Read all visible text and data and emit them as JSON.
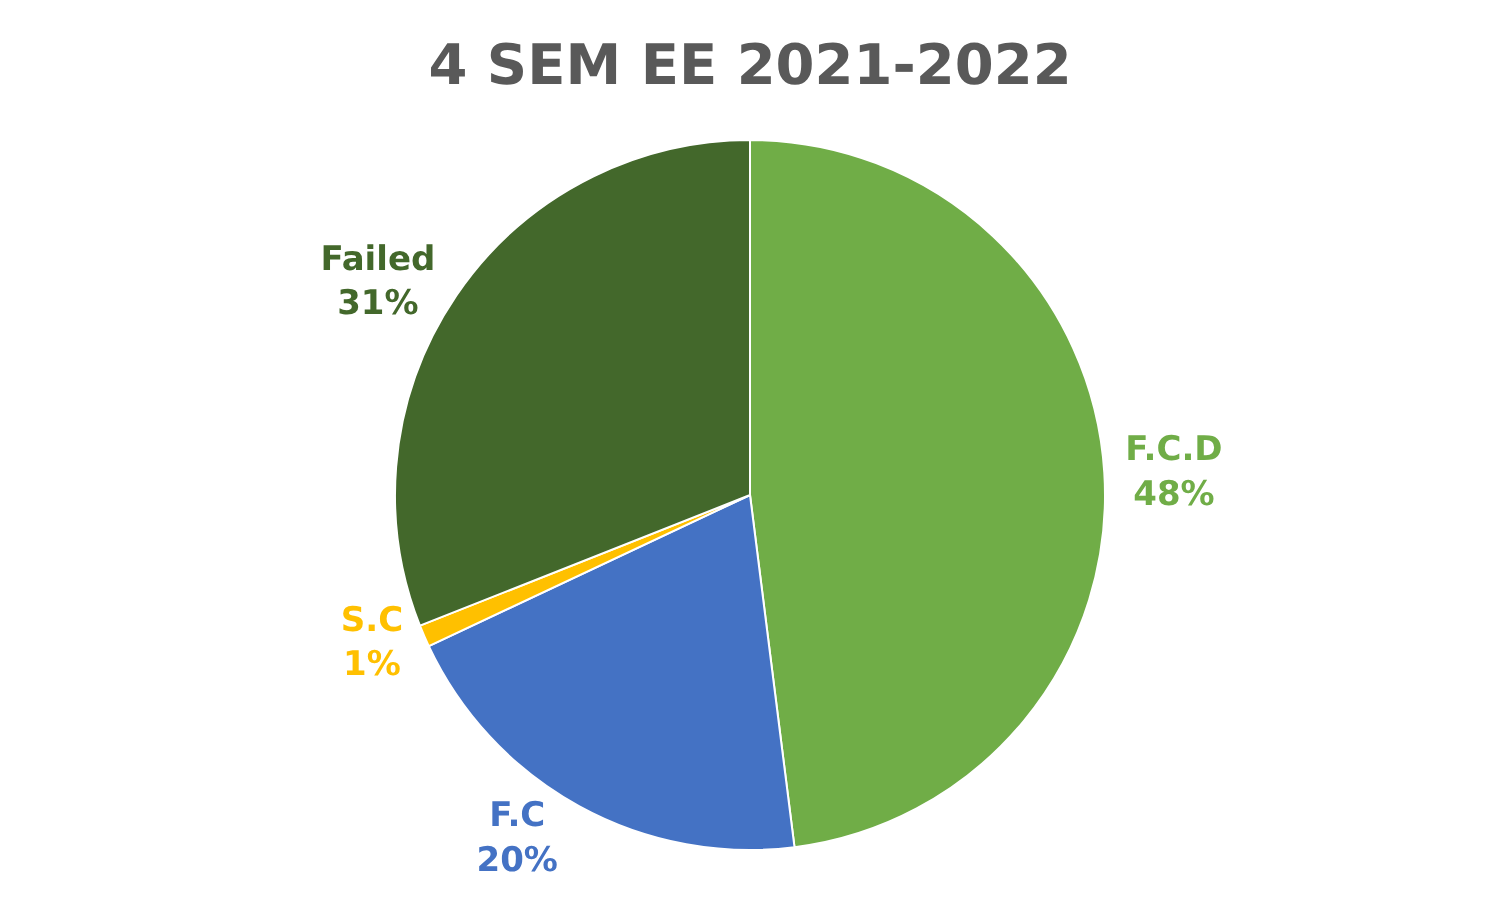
{
  "chart_data": {
    "type": "pie",
    "title": "4 SEM EE 2021-2022",
    "categories": [
      "F.C.D",
      "F.C",
      "S.C",
      "Failed"
    ],
    "values": [
      48,
      20,
      1,
      31
    ],
    "value_labels": [
      "48%",
      "20%",
      "1%",
      "31%"
    ],
    "colors": [
      "#70ad47",
      "#4472c4",
      "#ffc000",
      "#43682b"
    ],
    "legend": false
  }
}
